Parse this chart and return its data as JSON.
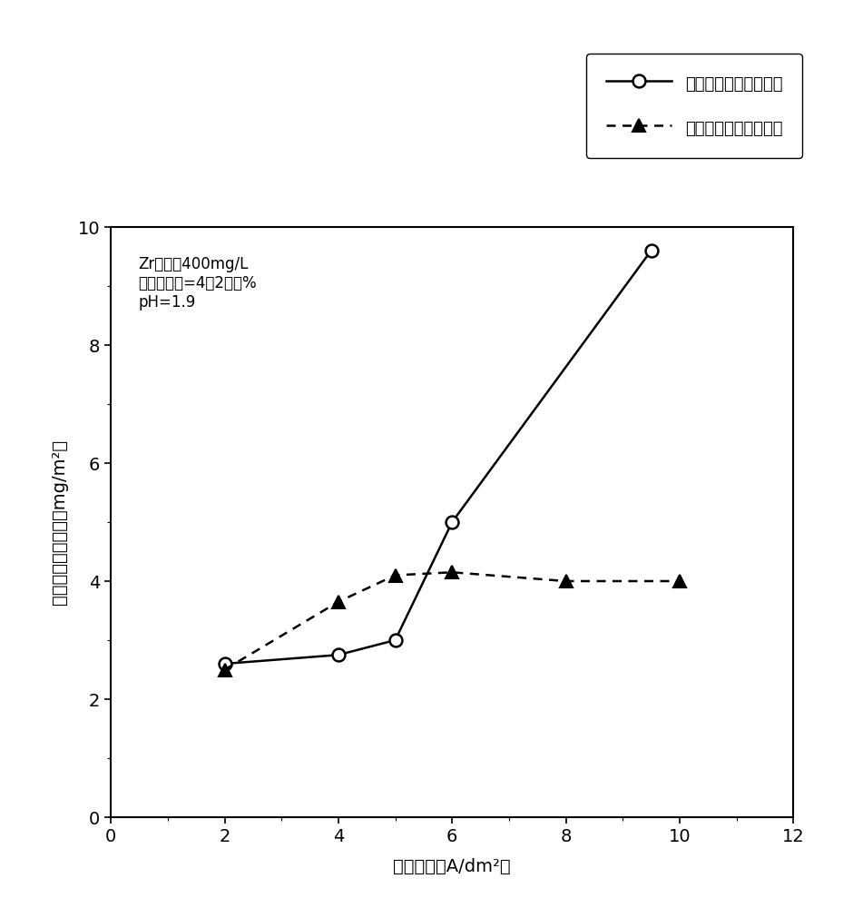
{
  "series1_x": [
    2,
    4,
    5,
    6,
    9.5
  ],
  "series1_y": [
    2.6,
    2.75,
    3.0,
    5.0,
    9.6
  ],
  "series1_label": "不含碱金属盐的硫酸锂",
  "series1_color": "#000000",
  "series2_x": [
    2,
    4,
    5,
    6,
    8,
    10
  ],
  "series2_y": [
    2.5,
    3.65,
    4.1,
    4.15,
    4.0,
    4.0
  ],
  "series2_label": "含有锂化合物的硫酸钓",
  "series2_color": "#000000",
  "xlabel": "电流密度（A/dm²）",
  "ylabel": "按锂换算的附着量（mg/m²）",
  "xlim": [
    0,
    12
  ],
  "ylim": [
    0,
    10
  ],
  "xticks": [
    0,
    2,
    4,
    6,
    8,
    10,
    12
  ],
  "yticks": [
    0,
    2,
    4,
    6,
    8,
    10
  ],
  "annotation_line1": "Zr浓度＝400mg/L",
  "annotation_line2": "硫酸钓浓度=4．2质量%",
  "annotation_line3": "pH=1.9",
  "background_color": "#ffffff",
  "linewidth": 1.8
}
